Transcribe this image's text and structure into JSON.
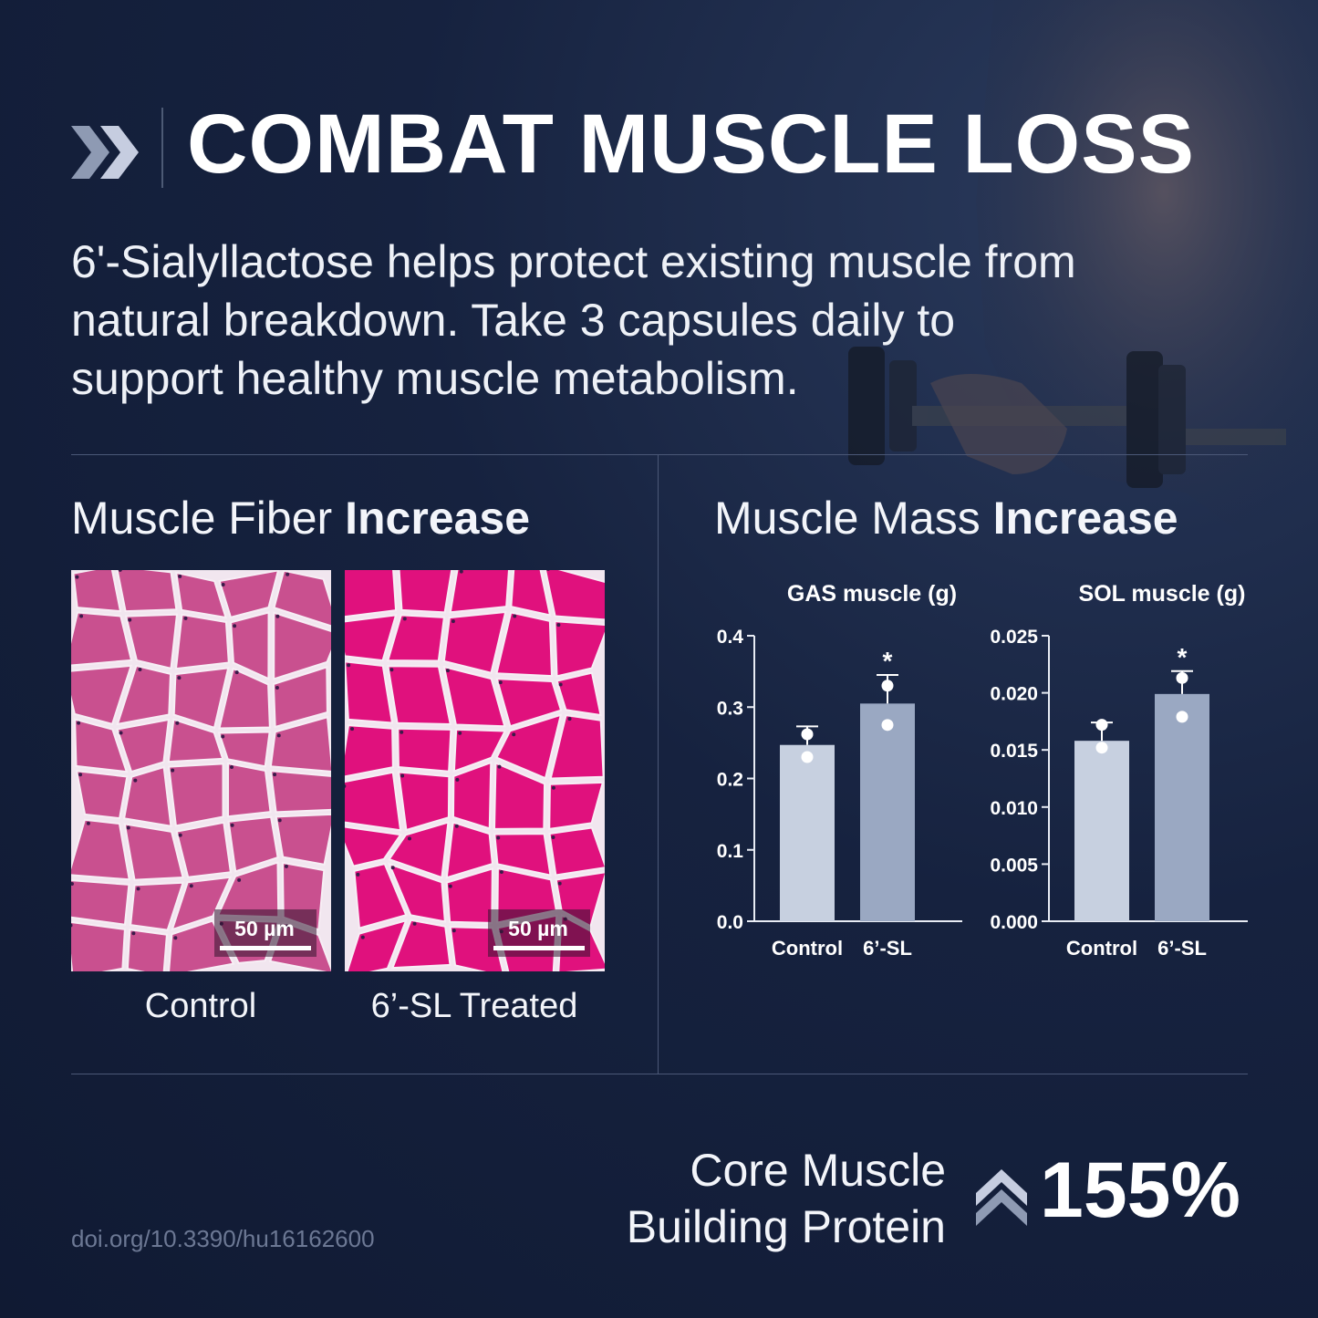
{
  "header": {
    "title": "COMBAT MUSCLE LOSS",
    "subtitle": "6'-Sialyllactose helps protect existing muscle from\nnatural breakdown. Take 3 capsules daily to\nsupport healthy muscle metabolism.",
    "chevron_icon": "double-chevron-right-icon"
  },
  "fiber_section": {
    "heading_regular": "Muscle Fiber ",
    "heading_bold": "Increase",
    "images": [
      {
        "caption": "Control",
        "scale_label": "50 µm",
        "tint": "#c9508f"
      },
      {
        "caption": "6’-SL Treated",
        "scale_label": "50 µm",
        "tint": "#e0117d"
      }
    ]
  },
  "mass_section": {
    "heading_regular": "Muscle Mass ",
    "heading_bold": "Increase"
  },
  "chart_data": [
    {
      "type": "bar",
      "title": "GAS muscle (g)",
      "categories": [
        "Control",
        "6’-SL"
      ],
      "values": [
        0.247,
        0.305
      ],
      "error_upper": [
        0.273,
        0.345
      ],
      "points": [
        0.262,
        0.23,
        0.33,
        0.275
      ],
      "point_groups": [
        0,
        0,
        1,
        1
      ],
      "significance": [
        "",
        "*"
      ],
      "ylim": [
        0,
        0.4
      ],
      "yticks": [
        "0.0",
        "0.1",
        "0.2",
        "0.3",
        "0.4"
      ],
      "ytick_values": [
        0,
        0.1,
        0.2,
        0.3,
        0.4
      ],
      "bar_colors": [
        "#c7d0e0",
        "#9aa8c2"
      ]
    },
    {
      "type": "bar",
      "title": "SOL muscle (g)",
      "categories": [
        "Control",
        "6’-SL"
      ],
      "values": [
        0.0158,
        0.0199
      ],
      "error_upper": [
        0.0174,
        0.0219
      ],
      "points": [
        0.0172,
        0.0152,
        0.0213,
        0.0179
      ],
      "point_groups": [
        0,
        0,
        1,
        1
      ],
      "significance": [
        "",
        "*"
      ],
      "ylim": [
        0,
        0.025
      ],
      "yticks": [
        "0.000",
        "0.005",
        "0.010",
        "0.015",
        "0.020",
        "0.025"
      ],
      "ytick_values": [
        0,
        0.005,
        0.01,
        0.015,
        0.02,
        0.025
      ],
      "bar_colors": [
        "#c7d0e0",
        "#9aa8c2"
      ]
    }
  ],
  "footer": {
    "core_label": "Core Muscle\nBuilding Protein",
    "up_icon": "double-chevron-up-icon",
    "value": "155%",
    "doi": "doi.org/10.3390/hu16162600"
  },
  "colors": {
    "background": "#16223f",
    "rule": "#4b5877",
    "chevron": "#8e9ab3"
  }
}
